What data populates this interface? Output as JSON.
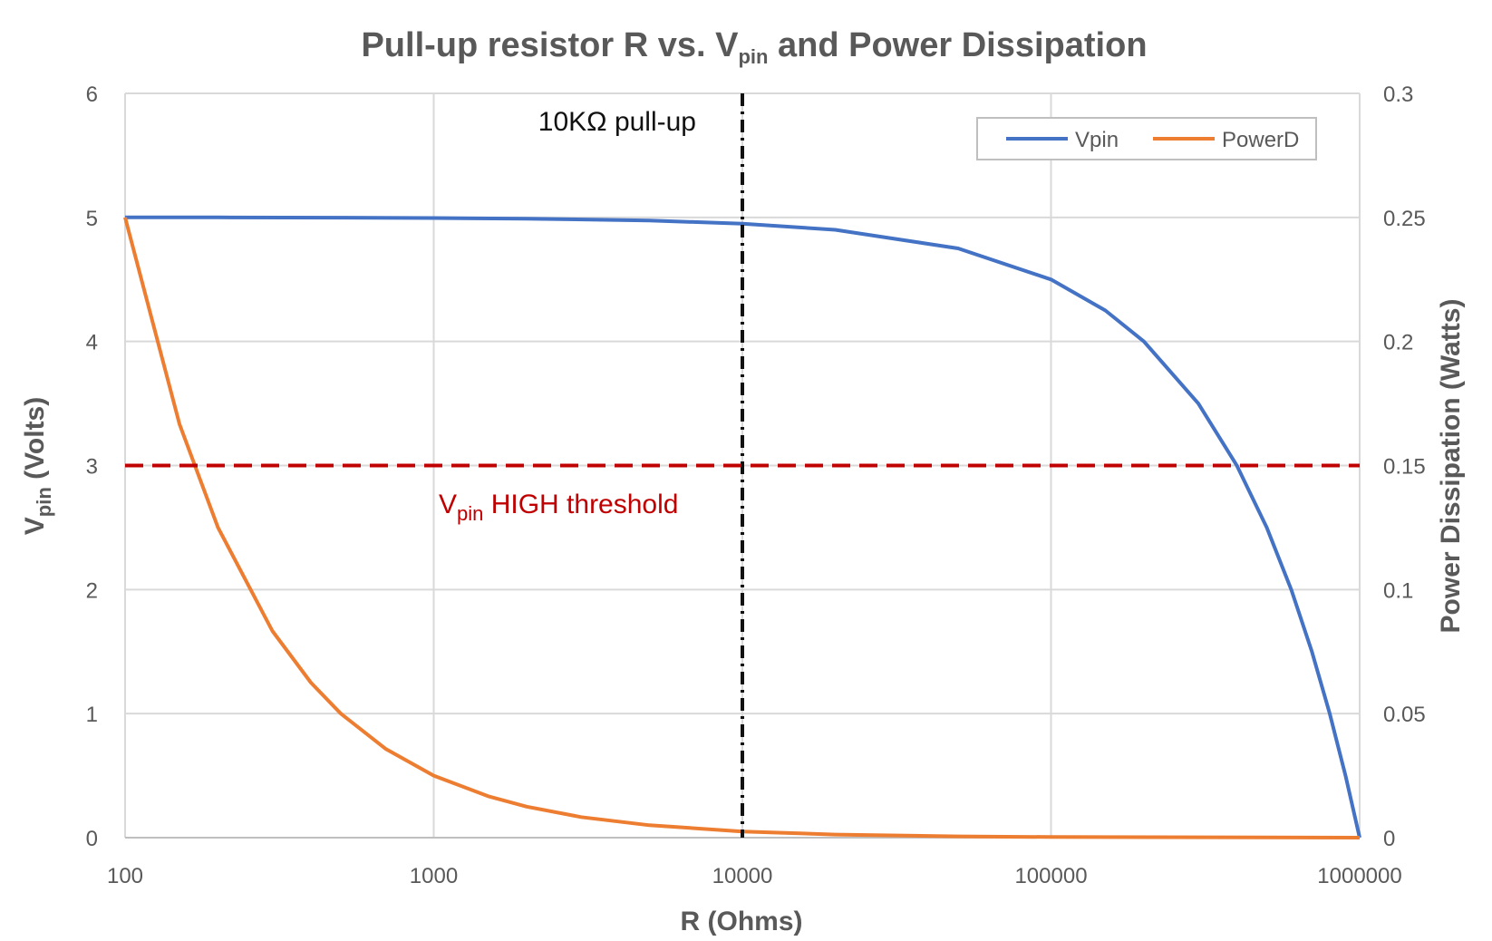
{
  "chart_data": {
    "type": "line",
    "title": {
      "prefix": "Pull-up resistor R vs. V",
      "sub": "pin",
      "suffix": " and Power Dissipation"
    },
    "xlabel": "R (Ohms)",
    "xscale": "log",
    "xlim": [
      100,
      1000000
    ],
    "xticks": [
      "100",
      "1000",
      "10000",
      "100000",
      "1000000"
    ],
    "ylabel": {
      "main": "V",
      "sub": "pin",
      "suffix": " (Volts)"
    },
    "ylim": [
      0,
      6
    ],
    "yticks": [
      "0",
      "1",
      "2",
      "3",
      "4",
      "5",
      "6"
    ],
    "y2label": "Power Dissipation (Watts)",
    "y2lim": [
      0,
      0.3
    ],
    "y2ticks": [
      "0",
      "0.05",
      "0.1",
      "0.15",
      "0.2",
      "0.25",
      "0.3"
    ],
    "grid": true,
    "legend_position": "top-right",
    "series": [
      {
        "name": "Vpin",
        "axis": "left",
        "color": "#4472C4",
        "x": [
          100,
          200,
          500,
          1000,
          2000,
          5000,
          10000,
          20000,
          50000,
          100000,
          150000,
          200000,
          300000,
          400000,
          500000,
          600000,
          700000,
          800000,
          900000,
          1000000
        ],
        "y": [
          5.0,
          5.0,
          4.998,
          4.995,
          4.99,
          4.975,
          4.95,
          4.9,
          4.75,
          4.5,
          4.25,
          4.0,
          3.5,
          3.0,
          2.5,
          2.0,
          1.5,
          1.0,
          0.5,
          0.0
        ]
      },
      {
        "name": "PowerD",
        "axis": "right",
        "color": "#ED7D31",
        "x": [
          100,
          150,
          200,
          300,
          400,
          500,
          700,
          1000,
          1500,
          2000,
          3000,
          5000,
          10000,
          20000,
          50000,
          100000,
          1000000
        ],
        "y": [
          0.25,
          0.1667,
          0.125,
          0.0833,
          0.0625,
          0.05,
          0.0357,
          0.025,
          0.0167,
          0.0125,
          0.0083,
          0.005,
          0.0025,
          0.00125,
          0.0005,
          0.00025,
          0.0
        ]
      }
    ],
    "annotations": {
      "pullup": {
        "label": "10KΩ pull-up",
        "x": 10000,
        "color": "#111111"
      },
      "threshold": {
        "label_main": "V",
        "label_sub": "pin",
        "label_suffix": " HIGH threshold",
        "y": 3,
        "color": "#C00000"
      }
    }
  }
}
